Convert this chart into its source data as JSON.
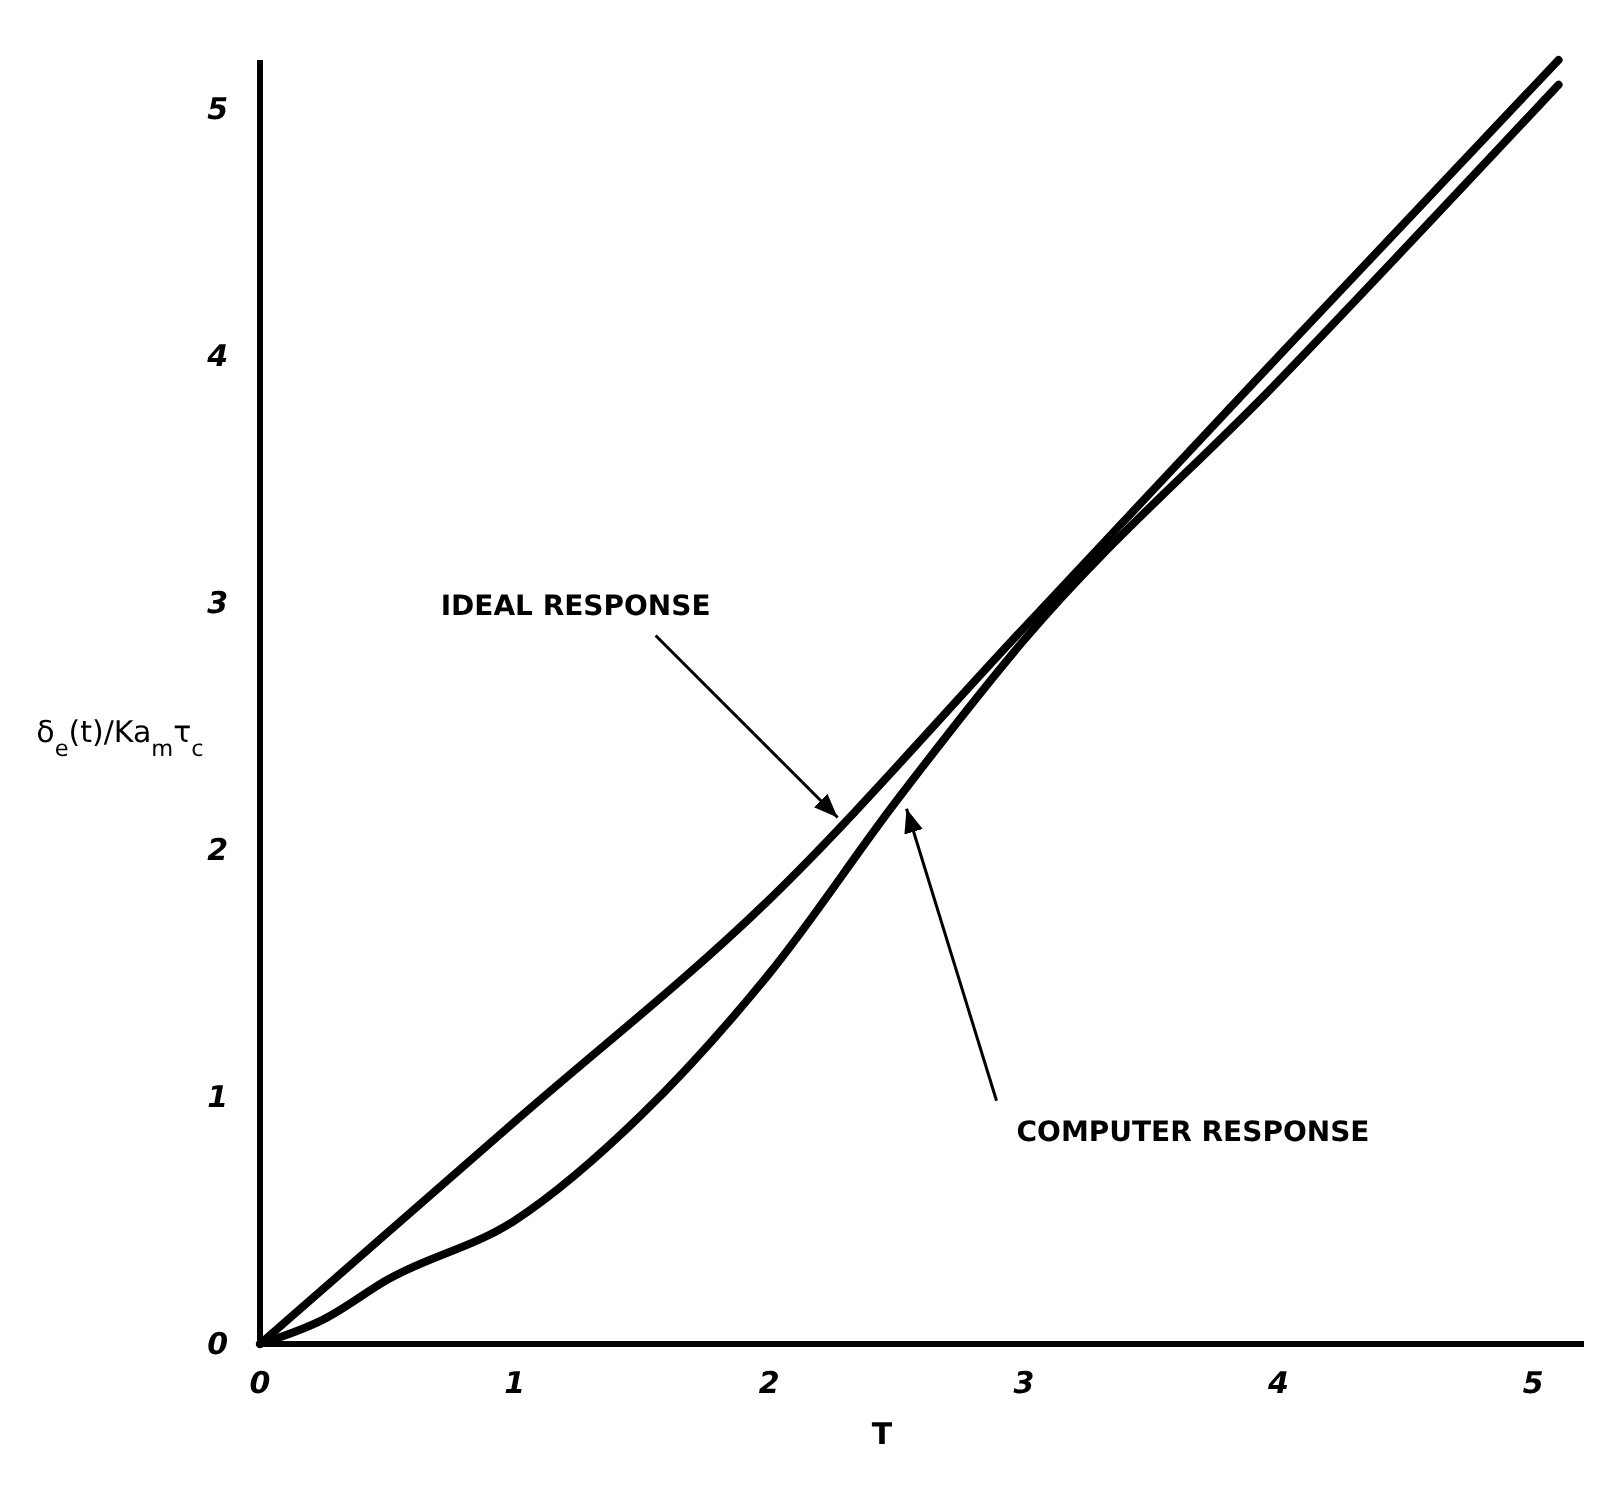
{
  "chart_data": {
    "type": "line",
    "xlabel": "T",
    "ylabel": "δ$_{e}$(t)/Ka$_{m}$τ$_{c}$",
    "xlim": [
      0,
      5.2
    ],
    "ylim": [
      0,
      5.2
    ],
    "xticks": [
      0,
      1,
      2,
      3,
      4,
      5
    ],
    "yticks": [
      0,
      1,
      2,
      3,
      4,
      5
    ],
    "grid": false,
    "marker": "none",
    "line_style": "solid",
    "series": [
      {
        "color": "#000000",
        "x": [
          0,
          1,
          2,
          3,
          4,
          5.1
        ],
        "values": [
          0,
          0.9,
          1.8,
          2.9,
          4.0,
          5.2
        ]
      },
      {
        "color": "#000000",
        "x": [
          0,
          0.25,
          0.5,
          1,
          1.5,
          2,
          2.5,
          3,
          4,
          5.1
        ],
        "values": [
          0,
          0.1,
          0.26,
          0.5,
          0.93,
          1.5,
          2.2,
          2.85,
          3.9,
          5.1
        ]
      }
    ],
    "annotations": [
      {
        "text": "IDEAL RESPONSE",
        "x": 2.3,
        "y": 2.1
      },
      {
        "text": "COMPUTER RESPONSE",
        "x": 2.5,
        "y": 2.2
      }
    ]
  }
}
